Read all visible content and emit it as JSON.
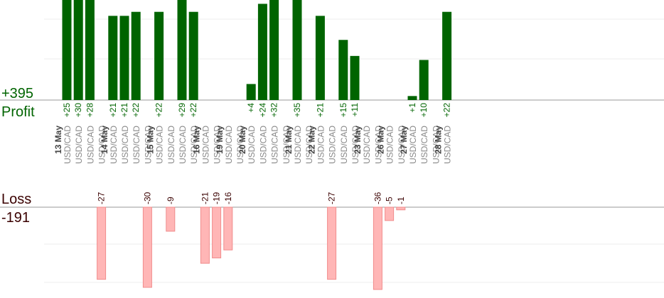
{
  "profit": {
    "label": "Profit",
    "total": "+395",
    "color": "#006400"
  },
  "loss": {
    "label": "Loss",
    "total": "-191",
    "color": "#ffb6b6"
  },
  "chart_data": {
    "type": "bar",
    "pair": "USD/CAD",
    "dates": [
      {
        "label": "13 May",
        "slots": 4
      },
      {
        "label": "14 May",
        "slots": 4
      },
      {
        "label": "15 May",
        "slots": 4
      },
      {
        "label": "16 May",
        "slots": 2
      },
      {
        "label": "19 May",
        "slots": 2
      },
      {
        "label": "20 May",
        "slots": 4
      },
      {
        "label": "21 May",
        "slots": 2
      },
      {
        "label": "22 May",
        "slots": 4
      },
      {
        "label": "23 May",
        "slots": 2
      },
      {
        "label": "26 May",
        "slots": 2
      },
      {
        "label": "27 May",
        "slots": 3
      },
      {
        "label": "28 May",
        "slots": 1
      }
    ],
    "trades": [
      25,
      30,
      28,
      -27,
      21,
      21,
      22,
      -30,
      22,
      -9,
      29,
      22,
      -21,
      -19,
      -16,
      0,
      4,
      24,
      32,
      0,
      35,
      0,
      21,
      -27,
      15,
      11,
      0,
      -36,
      -5,
      -1,
      1,
      10,
      0,
      22
    ],
    "profit_ylim": [
      0,
      25
    ],
    "loss_ylim": [
      0,
      30
    ],
    "grid": true
  }
}
